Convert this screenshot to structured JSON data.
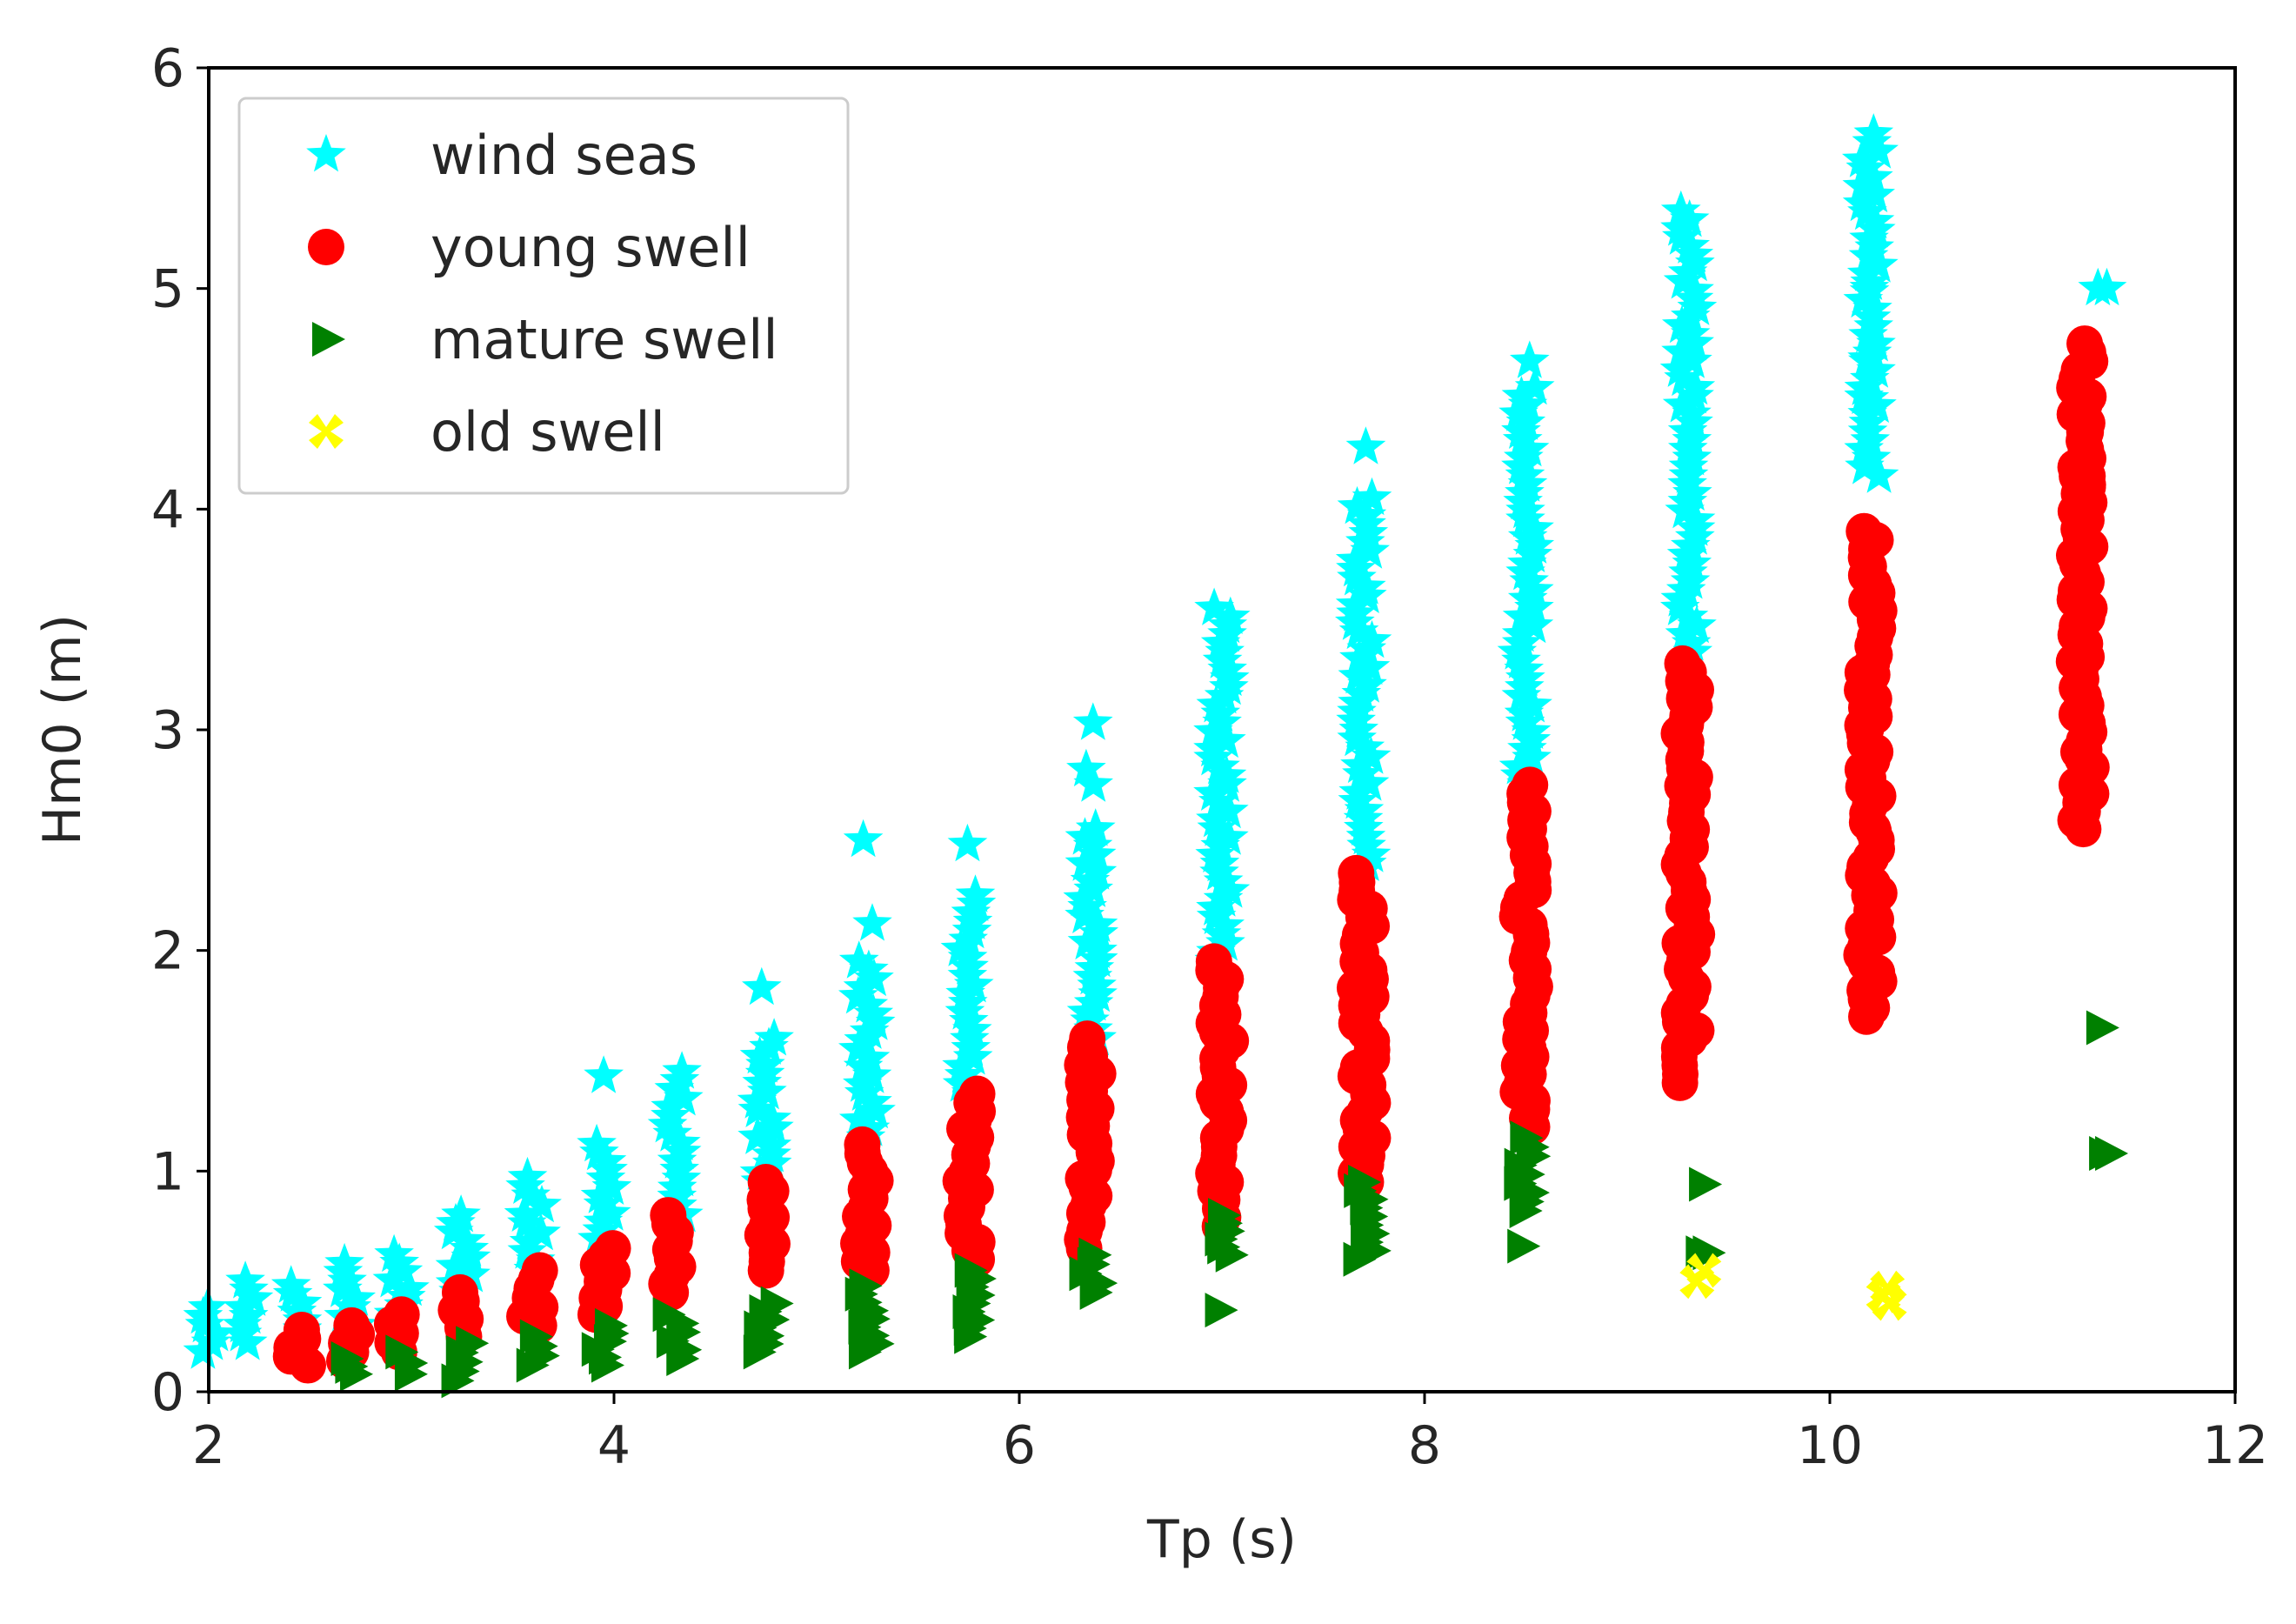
{
  "chart_data": {
    "type": "scatter",
    "title": "",
    "xlabel": "Tp (s)",
    "ylabel": "Hm0 (m)",
    "xlim": [
      2,
      12
    ],
    "ylim": [
      0,
      6
    ],
    "xticks": [
      2,
      4,
      6,
      8,
      10,
      12
    ],
    "yticks": [
      0,
      1,
      2,
      3,
      4,
      5,
      6
    ],
    "grid": false,
    "legend_position": "top-left",
    "series": [
      {
        "name": "wind seas",
        "marker": "star",
        "color": "#00ffff",
        "bins": [
          {
            "x": 2.0,
            "min": 0.18,
            "max": 0.38,
            "extras": []
          },
          {
            "x": 2.2,
            "min": 0.22,
            "max": 0.5,
            "extras": []
          },
          {
            "x": 2.45,
            "min": 0.28,
            "max": 0.48,
            "extras": []
          },
          {
            "x": 2.7,
            "min": 0.3,
            "max": 0.58,
            "extras": []
          },
          {
            "x": 2.95,
            "min": 0.35,
            "max": 0.62,
            "extras": []
          },
          {
            "x": 3.25,
            "min": 0.45,
            "max": 0.8,
            "extras": []
          },
          {
            "x": 3.6,
            "min": 0.55,
            "max": 0.97,
            "extras": []
          },
          {
            "x": 3.95,
            "min": 0.65,
            "max": 1.12,
            "extras": [
              1.43
            ]
          },
          {
            "x": 4.3,
            "min": 0.8,
            "max": 1.45,
            "extras": []
          },
          {
            "x": 4.75,
            "min": 0.95,
            "max": 1.6,
            "extras": [
              1.83
            ]
          },
          {
            "x": 5.25,
            "min": 1.15,
            "max": 1.95,
            "extras": [
              2.12,
              2.5
            ]
          },
          {
            "x": 5.75,
            "min": 1.35,
            "max": 2.25,
            "extras": [
              2.48
            ]
          },
          {
            "x": 6.35,
            "min": 1.6,
            "max": 2.55,
            "extras": [
              2.75,
              2.82,
              3.03
            ]
          },
          {
            "x": 7.0,
            "min": 1.95,
            "max": 3.55,
            "extras": []
          },
          {
            "x": 7.7,
            "min": 2.35,
            "max": 4.05,
            "extras": [
              4.28
            ]
          },
          {
            "x": 8.5,
            "min": 2.75,
            "max": 4.55,
            "extras": [
              4.67
            ]
          },
          {
            "x": 9.3,
            "min": 3.35,
            "max": 5.35,
            "extras": []
          },
          {
            "x": 10.2,
            "min": 4.15,
            "max": 5.7,
            "extras": [
              4.5,
              4.68,
              5.0
            ]
          },
          {
            "x": 11.35,
            "min": 5.0,
            "max": 5.0,
            "extras": []
          }
        ]
      },
      {
        "name": "young swell",
        "marker": "circle",
        "color": "#ff0000",
        "bins": [
          {
            "x": 2.45,
            "min": 0.12,
            "max": 0.28,
            "extras": []
          },
          {
            "x": 2.7,
            "min": 0.14,
            "max": 0.3,
            "extras": []
          },
          {
            "x": 2.95,
            "min": 0.18,
            "max": 0.35,
            "extras": []
          },
          {
            "x": 3.25,
            "min": 0.25,
            "max": 0.45,
            "extras": []
          },
          {
            "x": 3.6,
            "min": 0.3,
            "max": 0.55,
            "extras": []
          },
          {
            "x": 3.95,
            "min": 0.35,
            "max": 0.65,
            "extras": []
          },
          {
            "x": 4.3,
            "min": 0.45,
            "max": 0.8,
            "extras": []
          },
          {
            "x": 4.75,
            "min": 0.55,
            "max": 0.95,
            "extras": []
          },
          {
            "x": 5.25,
            "min": 0.55,
            "max": 1.12,
            "extras": []
          },
          {
            "x": 5.75,
            "min": 0.6,
            "max": 1.35,
            "extras": []
          },
          {
            "x": 6.35,
            "min": 0.65,
            "max": 1.6,
            "extras": []
          },
          {
            "x": 7.0,
            "min": 0.75,
            "max": 1.95,
            "extras": []
          },
          {
            "x": 7.7,
            "min": 0.95,
            "max": 2.35,
            "extras": []
          },
          {
            "x": 8.5,
            "min": 1.2,
            "max": 2.75,
            "extras": []
          },
          {
            "x": 9.3,
            "min": 1.4,
            "max": 3.3,
            "extras": []
          },
          {
            "x": 10.2,
            "min": 1.7,
            "max": 3.9,
            "extras": [
              2.05,
              2.25,
              2.55,
              3.0,
              3.25,
              3.85
            ]
          },
          {
            "x": 11.25,
            "min": 2.55,
            "max": 4.75,
            "extras": [
              2.9,
              3.33,
              3.8,
              4.15,
              4.35,
              4.52,
              4.1
            ]
          }
        ]
      },
      {
        "name": "mature swell",
        "marker": "triangle-right",
        "color": "#008000",
        "bins": [
          {
            "x": 2.7,
            "min": 0.08,
            "max": 0.15,
            "extras": []
          },
          {
            "x": 2.95,
            "min": 0.08,
            "max": 0.18,
            "extras": []
          },
          {
            "x": 3.25,
            "min": 0.05,
            "max": 0.22,
            "extras": []
          },
          {
            "x": 3.6,
            "min": 0.12,
            "max": 0.25,
            "extras": []
          },
          {
            "x": 3.95,
            "min": 0.12,
            "max": 0.3,
            "extras": []
          },
          {
            "x": 4.3,
            "min": 0.15,
            "max": 0.35,
            "extras": []
          },
          {
            "x": 4.75,
            "min": 0.18,
            "max": 0.4,
            "extras": []
          },
          {
            "x": 5.25,
            "min": 0.18,
            "max": 0.48,
            "extras": []
          },
          {
            "x": 5.75,
            "min": 0.25,
            "max": 0.55,
            "extras": []
          },
          {
            "x": 6.35,
            "min": 0.45,
            "max": 0.62,
            "extras": []
          },
          {
            "x": 7.0,
            "min": 0.62,
            "max": 0.8,
            "extras": [
              0.37
            ]
          },
          {
            "x": 7.7,
            "min": 0.6,
            "max": 0.95,
            "extras": []
          },
          {
            "x": 8.5,
            "min": 0.82,
            "max": 1.15,
            "extras": [
              0.66
            ]
          },
          {
            "x": 9.35,
            "min": 0.63,
            "max": 0.63,
            "extras": [
              0.94
            ]
          },
          {
            "x": 11.35,
            "min": 1.08,
            "max": 1.08,
            "extras": [
              1.65
            ]
          }
        ]
      },
      {
        "name": "old swell",
        "marker": "x-filled",
        "color": "#ffff00",
        "bins": [
          {
            "x": 9.35,
            "min": 0.5,
            "max": 0.55,
            "extras": []
          },
          {
            "x": 10.28,
            "min": 0.4,
            "max": 0.47,
            "extras": []
          }
        ]
      }
    ]
  }
}
